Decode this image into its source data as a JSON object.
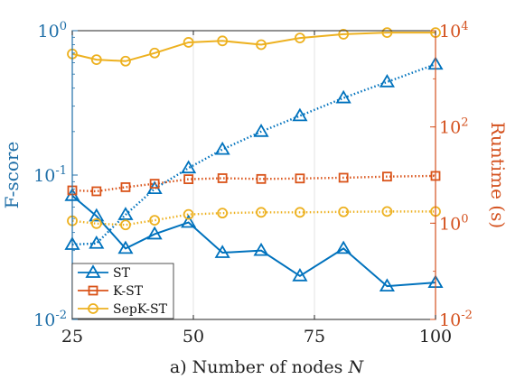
{
  "chart_data": {
    "type": "line",
    "xlabel": "a) Number of nodes",
    "xlabel_var": "N",
    "ylabel_left": "F-score",
    "ylabel_right": "Runtime (s)",
    "x": [
      25,
      30,
      36,
      42,
      49,
      56,
      64,
      72,
      81,
      90,
      100
    ],
    "xlim": [
      25,
      100
    ],
    "xticks": [
      25,
      50,
      75,
      100
    ],
    "y_left": {
      "scale": "log",
      "ylim": [
        0.01,
        1
      ],
      "ticks": [
        {
          "base": "10",
          "exp": "-2",
          "v": 0.01
        },
        {
          "base": "10",
          "exp": "-1",
          "v": 0.1
        },
        {
          "base": "10",
          "exp": "0",
          "v": 1
        }
      ]
    },
    "y_right": {
      "scale": "log",
      "ylim": [
        0.01,
        10000
      ],
      "ticks": [
        {
          "base": "10",
          "exp": "-2",
          "v": 0.01
        },
        {
          "base": "10",
          "exp": "0",
          "v": 1
        },
        {
          "base": "10",
          "exp": "2",
          "v": 100
        },
        {
          "base": "10",
          "exp": "4",
          "v": 10000
        }
      ]
    },
    "grid": "x-only",
    "legend_position": "bottom-left",
    "series": [
      {
        "name": "ST",
        "axis": "left",
        "line_style": "solid",
        "marker": "triangle",
        "color": "#0072bd",
        "values": [
          0.072,
          0.052,
          0.031,
          0.039,
          0.047,
          0.029,
          0.03,
          0.02,
          0.031,
          0.017,
          0.018
        ]
      },
      {
        "name": "ST",
        "axis": "right",
        "line_style": "dotted",
        "marker": "triangle",
        "color": "#0072bd",
        "values": [
          0.36,
          0.38,
          1.5,
          5.2,
          14,
          34,
          80,
          170,
          400,
          860,
          2000
        ]
      },
      {
        "name": "K-ST",
        "axis": "right",
        "line_style": "dotted",
        "marker": "square",
        "color": "#d95319",
        "values": [
          4.8,
          4.6,
          5.6,
          6.6,
          8.2,
          8.6,
          8.3,
          8.5,
          8.8,
          9.3,
          9.6
        ]
      },
      {
        "name": "SepK-ST",
        "axis": "right",
        "line_style": "dotted",
        "marker": "circle",
        "color": "#edb120",
        "values": [
          1.12,
          0.98,
          0.92,
          1.15,
          1.52,
          1.62,
          1.68,
          1.68,
          1.72,
          1.75,
          1.75
        ]
      },
      {
        "name": "SepK-ST",
        "axis": "left",
        "line_style": "solid",
        "marker": "circle",
        "color": "#edb120",
        "values": [
          0.69,
          0.63,
          0.615,
          0.7,
          0.83,
          0.85,
          0.8,
          0.89,
          0.945,
          0.97,
          0.97
        ]
      }
    ],
    "legend": [
      "ST",
      "K-ST",
      "SepK-ST"
    ]
  }
}
